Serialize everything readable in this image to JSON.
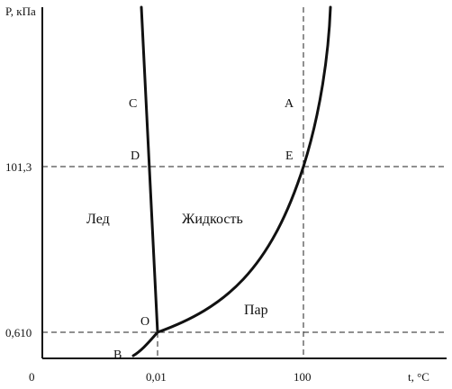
{
  "diagram": {
    "y_axis_label": "P, кПа",
    "x_axis_label": "t, °C",
    "y_ticks": [
      "101,3",
      "0,610"
    ],
    "x_ticks": [
      "0",
      "0,01",
      "100"
    ],
    "points": {
      "A": "A",
      "B": "B",
      "C": "C",
      "D": "D",
      "E": "E",
      "O": "O"
    },
    "regions": {
      "ice": "Лед",
      "liquid": "Жидкость",
      "vapor": "Пар"
    }
  }
}
